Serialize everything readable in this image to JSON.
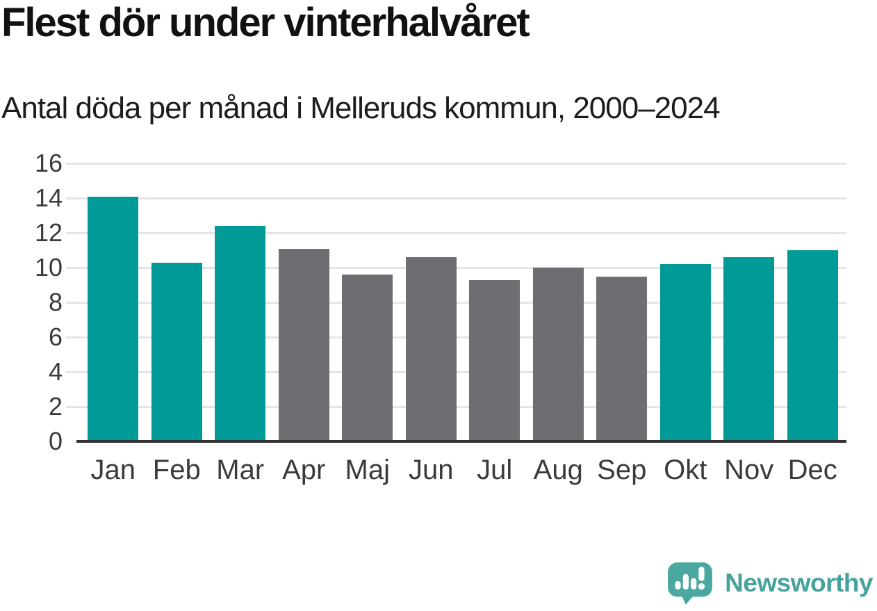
{
  "title": "Flest dör under vinterhalvåret",
  "subtitle": "Antal döda per månad i Melleruds kommun, 2000–2024",
  "footer": {
    "brand": "Newsworthy"
  },
  "icons": {
    "logo": "newsworthy-speech-bubble-bar-chart-icon"
  },
  "colors": {
    "accent_teal": "#009B96",
    "neutral_gray": "#6D6D72",
    "logo_teal": "#45A39C",
    "logo_bubble": "#4BA8A1",
    "axis": "#333333",
    "gridline": "#E5E5E5",
    "title_text": "#111111",
    "tick_text": "#3B3B3B"
  },
  "chart_data": {
    "type": "bar",
    "title": "Flest dör under vinterhalvåret",
    "subtitle": "Antal döda per månad i Melleruds kommun, 2000–2024",
    "categories": [
      "Jan",
      "Feb",
      "Mar",
      "Apr",
      "Maj",
      "Jun",
      "Jul",
      "Aug",
      "Sep",
      "Okt",
      "Nov",
      "Dec"
    ],
    "values": [
      14.1,
      10.3,
      12.4,
      11.1,
      9.6,
      10.6,
      9.3,
      10.0,
      9.5,
      10.2,
      10.6,
      11.0
    ],
    "bar_colors": [
      "teal",
      "teal",
      "teal",
      "gray",
      "gray",
      "gray",
      "gray",
      "gray",
      "gray",
      "teal",
      "teal",
      "teal"
    ],
    "palette": {
      "teal": "#009B96",
      "gray": "#6D6D72"
    },
    "xlabel": "",
    "ylabel": "",
    "ylim": [
      0,
      16
    ],
    "yticks": [
      0,
      2,
      4,
      6,
      8,
      10,
      12,
      14,
      16
    ],
    "grid": true,
    "legend": false
  }
}
